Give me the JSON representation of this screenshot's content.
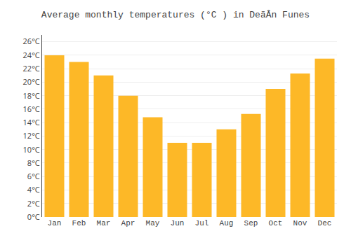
{
  "chart_data": {
    "type": "bar",
    "title": "Average monthly temperatures (°C ) in DeãÂn Funes",
    "categories": [
      "Jan",
      "Feb",
      "Mar",
      "Apr",
      "May",
      "Jun",
      "Jul",
      "Aug",
      "Sep",
      "Oct",
      "Nov",
      "Dec"
    ],
    "values": [
      24.0,
      23.0,
      21.0,
      18.0,
      14.8,
      11.0,
      11.0,
      13.0,
      15.3,
      19.0,
      21.3,
      23.5
    ],
    "color": "#FDB827",
    "ylim": [
      0,
      27
    ],
    "yticks": [
      {
        "value": 0,
        "label": "0°C"
      },
      {
        "value": 2,
        "label": "2°C"
      },
      {
        "value": 4,
        "label": "4°C"
      },
      {
        "value": 6,
        "label": "6°C"
      },
      {
        "value": 8,
        "label": "8°C"
      },
      {
        "value": 10,
        "label": "10°C"
      },
      {
        "value": 12,
        "label": "12°C"
      },
      {
        "value": 14,
        "label": "14°C"
      },
      {
        "value": 16,
        "label": "16°C"
      },
      {
        "value": 18,
        "label": "18°C"
      },
      {
        "value": 20,
        "label": "20°C"
      },
      {
        "value": 22,
        "label": "22°C"
      },
      {
        "value": 24,
        "label": "24°C"
      },
      {
        "value": 26,
        "label": "26°C"
      }
    ],
    "grid": true
  }
}
